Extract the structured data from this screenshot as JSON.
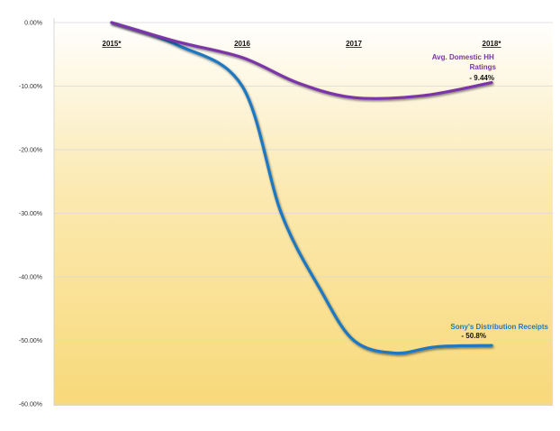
{
  "chart_data": {
    "type": "line",
    "categories": [
      "2015*",
      "2016",
      "2017",
      "2018*"
    ],
    "y_ticks": [
      "0.00%",
      "-10.00%",
      "-20.00%",
      "-30.00%",
      "-40.00%",
      "-50.00%",
      "-60.00%"
    ],
    "ylim": [
      -60,
      0
    ],
    "grid": true,
    "background_gradient": [
      "#FFFFFF",
      "#FBE9B0",
      "#F8D97A"
    ],
    "series": [
      {
        "name": "Sony's Distribution Receipts",
        "color": "#1F78C1",
        "annotation_value": "- 50.8%",
        "x": [
          0,
          0.5,
          1,
          1.35,
          1.7,
          2,
          2.3,
          2.6,
          3
        ],
        "values": [
          0,
          -3.5,
          -10,
          -30,
          -42,
          -50,
          -52,
          -51,
          -50.8
        ]
      },
      {
        "name": "Avg. Domestic HH Ratings",
        "color": "#7B35A8",
        "annotation_value": "- 9.44%",
        "x": [
          0,
          0.5,
          1,
          1.5,
          2,
          2.5,
          3
        ],
        "values": [
          0,
          -3,
          -5.5,
          -9.5,
          -11.8,
          -11.5,
          -9.44
        ]
      }
    ],
    "annotations": {
      "ratings_title": "Avg. Domestic HH Ratings",
      "ratings_value": "- 9.44%",
      "sony_title": "Sony's Distribution Receipts",
      "sony_value": "- 50.8%"
    }
  }
}
